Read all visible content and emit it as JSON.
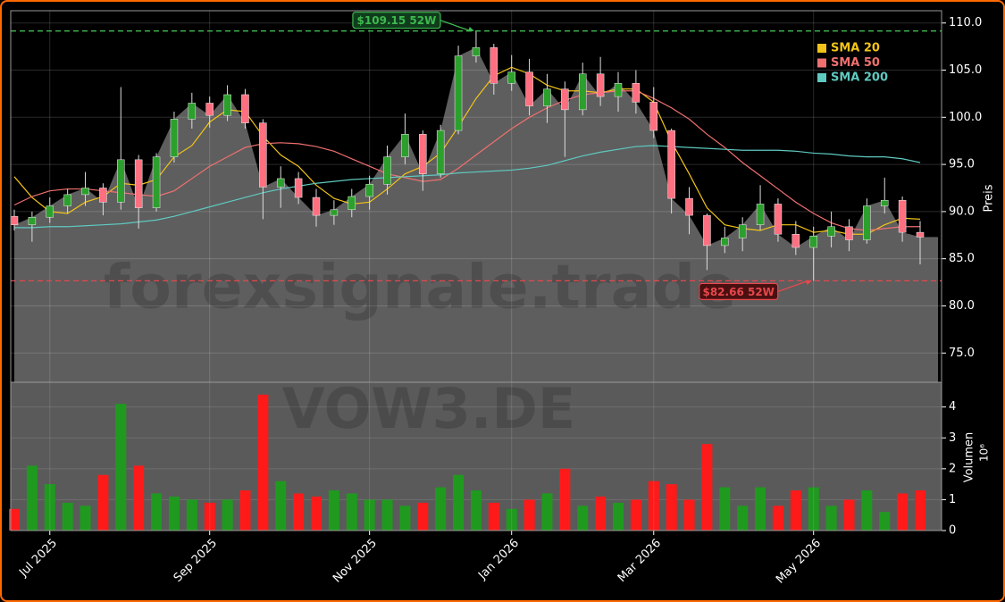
{
  "chart_data": [
    {
      "type": "candlestick",
      "watermark": "forexsignale.trade",
      "ylabel": "Preis",
      "up_color": "#2ca02c",
      "down_color": "#ff6f80",
      "area_color": "#5e5e5e",
      "open": [
        89.5,
        88.6,
        89.4,
        90.6,
        91.8,
        92.5,
        91.0,
        95.5,
        90.4,
        95.8,
        99.8,
        101.5,
        100.2,
        102.4,
        99.4,
        92.6,
        93.5,
        91.5,
        89.6,
        90.2,
        91.6,
        92.9,
        95.8,
        98.2,
        94.0,
        98.6,
        106.5,
        107.4,
        103.6,
        104.8,
        101.2,
        103.0,
        100.8,
        104.6,
        102.2,
        103.6,
        101.6,
        98.6,
        91.4,
        89.6,
        86.4,
        87.2,
        88.6,
        90.8,
        87.6,
        86.2,
        87.4,
        88.4,
        87.0,
        90.6,
        91.2,
        87.8
      ],
      "high": [
        90.2,
        90.0,
        91.5,
        92.4,
        94.2,
        93.0,
        103.2,
        96.0,
        96.2,
        100.6,
        102.6,
        102.2,
        103.4,
        103.0,
        99.8,
        94.8,
        94.2,
        92.4,
        91.2,
        92.4,
        93.8,
        97.0,
        100.4,
        98.6,
        99.2,
        107.6,
        109.15,
        107.8,
        106.6,
        106.2,
        104.6,
        103.8,
        105.8,
        106.4,
        104.8,
        105.0,
        103.2,
        98.8,
        92.6,
        89.8,
        88.4,
        89.4,
        92.8,
        91.4,
        89.0,
        88.4,
        90.0,
        89.2,
        91.4,
        93.6,
        91.6,
        89.0
      ],
      "low": [
        88.0,
        86.8,
        88.8,
        89.8,
        90.6,
        89.6,
        90.2,
        88.2,
        90.0,
        95.2,
        98.8,
        98.9,
        99.6,
        98.8,
        89.2,
        90.4,
        90.8,
        88.4,
        88.6,
        89.4,
        90.2,
        91.8,
        95.0,
        92.2,
        93.6,
        98.2,
        105.8,
        102.4,
        102.8,
        100.2,
        99.4,
        95.8,
        100.2,
        101.2,
        100.6,
        100.4,
        97.8,
        89.8,
        87.6,
        83.8,
        85.6,
        85.8,
        88.0,
        86.8,
        85.4,
        82.66,
        86.2,
        85.8,
        86.6,
        89.8,
        86.8,
        84.4
      ],
      "close": [
        88.6,
        89.4,
        90.6,
        91.8,
        92.5,
        91.0,
        95.5,
        90.4,
        95.8,
        99.8,
        101.5,
        100.2,
        102.4,
        99.4,
        92.6,
        93.5,
        91.5,
        89.6,
        90.2,
        91.6,
        92.9,
        95.8,
        98.2,
        94.0,
        98.6,
        106.5,
        107.4,
        103.6,
        104.8,
        101.2,
        103.0,
        100.8,
        104.6,
        102.2,
        103.6,
        101.6,
        98.6,
        91.4,
        89.6,
        86.4,
        87.2,
        88.6,
        90.8,
        87.6,
        86.2,
        87.4,
        88.4,
        87.0,
        90.6,
        91.2,
        87.8,
        87.3
      ],
      "series": [
        {
          "name": "SMA 20",
          "color": "#f2c318",
          "values": [
            93.7,
            91.5,
            90.0,
            89.8,
            91.0,
            91.6,
            93.0,
            92.8,
            93.4,
            95.8,
            97.0,
            99.5,
            100.8,
            100.6,
            98.0,
            96.0,
            94.8,
            92.8,
            91.4,
            90.8,
            91.0,
            92.4,
            94.0,
            94.8,
            96.2,
            99.0,
            102.0,
            104.4,
            105.3,
            104.6,
            103.4,
            102.8,
            102.8,
            102.6,
            103.0,
            103.0,
            101.6,
            97.4,
            94.0,
            90.4,
            88.6,
            88.2,
            88.0,
            88.6,
            88.6,
            87.8,
            88.0,
            87.6,
            87.6,
            88.6,
            89.3,
            89.2
          ]
        },
        {
          "name": "SMA 50",
          "color": "#f07070",
          "values": [
            90.7,
            91.6,
            92.2,
            92.4,
            92.4,
            92.2,
            92.0,
            91.8,
            91.6,
            92.2,
            93.5,
            94.8,
            95.8,
            96.8,
            97.2,
            97.3,
            97.2,
            96.9,
            96.4,
            95.6,
            94.8,
            94.0,
            93.6,
            93.2,
            93.4,
            94.6,
            96.0,
            97.4,
            98.8,
            100.0,
            101.0,
            101.8,
            102.4,
            102.6,
            102.8,
            102.8,
            102.0,
            101.0,
            99.8,
            98.2,
            96.8,
            95.2,
            93.8,
            92.4,
            91.0,
            89.8,
            88.8,
            88.2,
            88.0,
            88.2,
            88.4,
            88.4
          ]
        },
        {
          "name": "SMA 200",
          "color": "#5fc9c0",
          "values": [
            88.3,
            88.3,
            88.4,
            88.4,
            88.5,
            88.6,
            88.7,
            88.9,
            89.1,
            89.5,
            90.0,
            90.5,
            91.0,
            91.5,
            92.0,
            92.4,
            92.7,
            93.0,
            93.2,
            93.4,
            93.5,
            93.6,
            93.7,
            93.8,
            93.9,
            94.1,
            94.2,
            94.3,
            94.4,
            94.6,
            94.9,
            95.4,
            95.9,
            96.3,
            96.6,
            96.9,
            97.0,
            96.9,
            96.8,
            96.7,
            96.6,
            96.5,
            96.5,
            96.5,
            96.4,
            96.2,
            96.1,
            95.9,
            95.8,
            95.8,
            95.6,
            95.2
          ]
        }
      ],
      "hlines": [
        {
          "value": 109.15,
          "label": "$109.15 52W",
          "color": "#3fb950"
        },
        {
          "value": 82.66,
          "label": "$82.66 52W",
          "color": "#e5484d"
        }
      ],
      "ylim": [
        71.9,
        111.3
      ],
      "yticks": [
        {
          "value": 75,
          "label": "75.0"
        },
        {
          "value": 80,
          "label": "80.0"
        },
        {
          "value": 85,
          "label": "85.0"
        },
        {
          "value": 90,
          "label": "90.0"
        },
        {
          "value": 95,
          "label": "95.0"
        },
        {
          "value": 100,
          "label": "100.0"
        },
        {
          "value": 105,
          "label": "105.0"
        },
        {
          "value": 110,
          "label": "110.0"
        }
      ],
      "grid": true
    },
    {
      "type": "bar",
      "watermark": "VOW3.DE",
      "ylabel": "Volumen",
      "scale_label": "10⁶",
      "up_color": "#1f9a1f",
      "down_color": "#ff1a1a",
      "categories": [
        null,
        null,
        "Jul 2025",
        null,
        null,
        null,
        null,
        null,
        null,
        null,
        null,
        "Sep 2025",
        null,
        null,
        null,
        null,
        null,
        null,
        null,
        null,
        "Nov 2025",
        null,
        null,
        null,
        null,
        null,
        null,
        null,
        "Jan 2026",
        null,
        null,
        null,
        null,
        null,
        null,
        null,
        "Mar 2026",
        null,
        null,
        null,
        null,
        null,
        null,
        null,
        null,
        "May 2026",
        null,
        null,
        null,
        null,
        null,
        null
      ],
      "values": [
        0.7,
        2.1,
        1.5,
        0.9,
        0.8,
        1.8,
        4.1,
        2.1,
        1.2,
        1.1,
        1.0,
        0.9,
        1.0,
        1.3,
        4.4,
        1.6,
        1.2,
        1.1,
        1.3,
        1.2,
        1.0,
        1.0,
        0.8,
        0.9,
        1.4,
        1.8,
        1.3,
        0.9,
        0.7,
        1.0,
        1.2,
        2.0,
        0.8,
        1.1,
        0.9,
        1.0,
        1.6,
        1.5,
        1.0,
        2.8,
        1.4,
        0.8,
        1.4,
        0.8,
        1.3,
        1.4,
        0.8,
        1.0,
        1.3,
        0.6,
        1.2,
        1.3
      ],
      "ylim": [
        0,
        4.8
      ],
      "yticks": [
        0,
        1,
        2,
        3,
        4
      ],
      "grid": true
    }
  ]
}
